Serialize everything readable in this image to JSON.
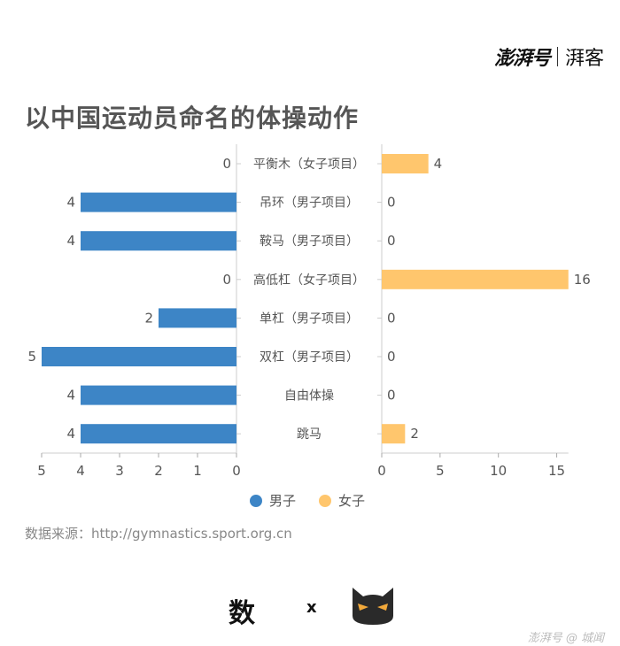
{
  "brand": {
    "logo": "澎湃号",
    "sub": "湃客",
    "bottom": "澎湃号 @ 城闻"
  },
  "footer": {
    "partner_logo": "数",
    "times": "x"
  },
  "chart_data": {
    "type": "bar",
    "title": "以中国运动员命名的体操动作",
    "categories": [
      "平衡木（女子项目）",
      "吊环（男子项目）",
      "鞍马（男子项目）",
      "高低杠（女子项目）",
      "单杠（男子项目）",
      "双杠（男子项目）",
      "自由体操",
      "跳马"
    ],
    "series": [
      {
        "name": "男子",
        "values": [
          0,
          4,
          4,
          0,
          2,
          5,
          4,
          4
        ],
        "color": "#3d85c6"
      },
      {
        "name": "女子",
        "values": [
          4,
          0,
          0,
          16,
          0,
          0,
          0,
          2
        ],
        "color": "#ffc66d"
      }
    ],
    "left_axis": {
      "ticks": [
        5,
        4,
        3,
        2,
        1,
        0
      ],
      "xlim": [
        0,
        5
      ]
    },
    "right_axis": {
      "ticks": [
        0,
        5,
        10,
        15
      ],
      "xlim": [
        0,
        16.5
      ]
    },
    "legend": "bottom-center",
    "source": "数据来源：http://gymnastics.sport.org.cn"
  }
}
